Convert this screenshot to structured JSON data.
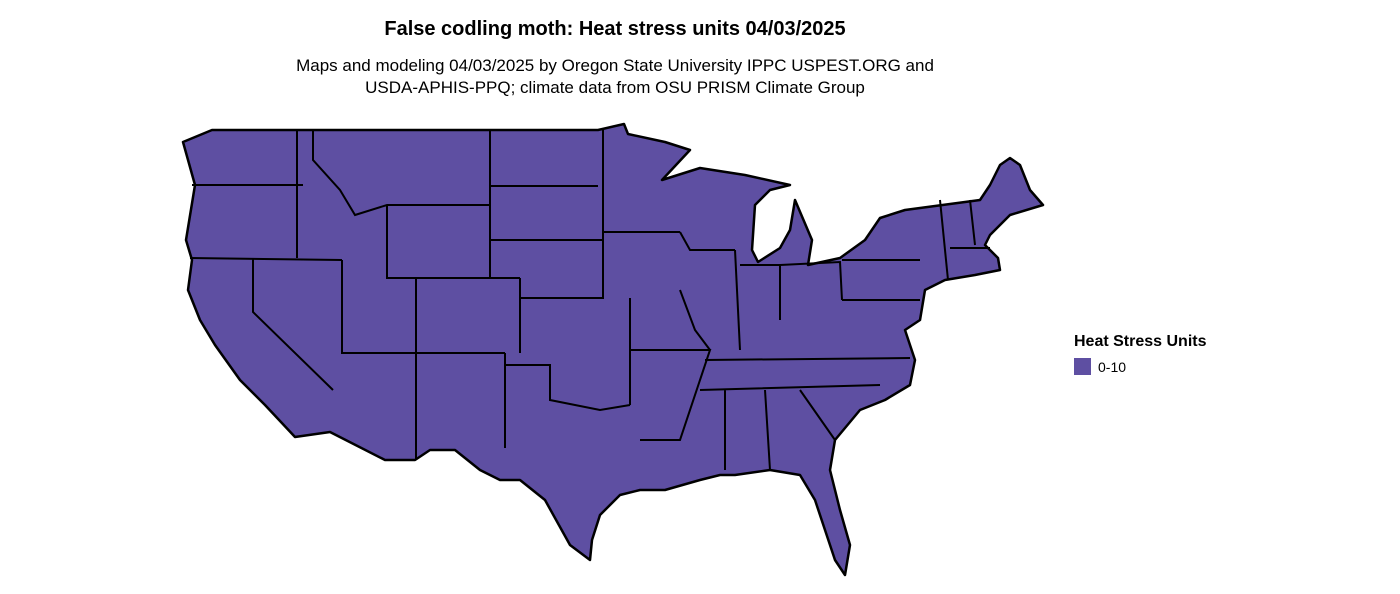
{
  "title": "False codling moth: Heat stress units 04/03/2025",
  "subtitle_line1": "Maps and modeling 04/03/2025 by Oregon State University IPPC USPEST.ORG and",
  "subtitle_line2": "USDA-APHIS-PPQ; climate data from OSU PRISM Climate Group",
  "map": {
    "region": "contiguous United States",
    "boundaries": "state",
    "fill_class": "0-10"
  },
  "legend": {
    "title": "Heat Stress Units",
    "items": [
      {
        "label": "0-10",
        "color": "#5e4fa2"
      }
    ]
  },
  "colors": {
    "fill": "#5e4fa2",
    "border": "#000000"
  }
}
